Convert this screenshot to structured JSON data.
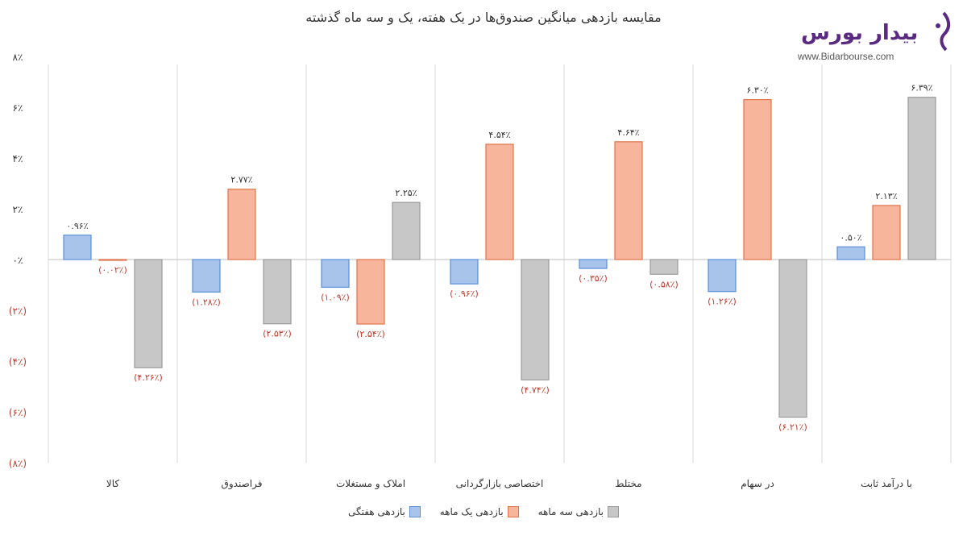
{
  "title": "مقایسه بازدهی میانگین صندوق‌ها در یک هفته، یک و سه ماه گذشته",
  "logo": {
    "name": "بیدار بورس",
    "url": "www.Bidarbourse.com"
  },
  "colors": {
    "weekly_fill": "#a9c4eb",
    "weekly_stroke": "#5b8ed6",
    "monthly_fill": "#f7b59b",
    "monthly_stroke": "#e0734a",
    "three_month_fill": "#c7c7c7",
    "three_month_stroke": "#9a9a9a",
    "positive_label": "#333333",
    "negative_label": "#c0392b"
  },
  "chart_data": {
    "type": "bar",
    "ylim": [
      -8,
      8
    ],
    "yticks": [
      {
        "value": 8,
        "label": "۸٪"
      },
      {
        "value": 6,
        "label": "۶٪"
      },
      {
        "value": 4,
        "label": "۴٪"
      },
      {
        "value": 2,
        "label": "۲٪"
      },
      {
        "value": 0,
        "label": "۰٪"
      },
      {
        "value": -2,
        "label": "(۲٪)"
      },
      {
        "value": -4,
        "label": "(۴٪)"
      },
      {
        "value": -6,
        "label": "(۶٪)"
      },
      {
        "value": -8,
        "label": "(۸٪)"
      }
    ],
    "categories": [
      "کالا",
      "فراصندوق",
      "املاک و مستغلات",
      "اختصاصی بازارگردانی",
      "مختلط",
      "در سهام",
      "با درآمد ثابت"
    ],
    "series": [
      {
        "name": "بازدهی هفتگی",
        "values": [
          0.96,
          -1.28,
          -1.09,
          -0.96,
          -0.35,
          -1.26,
          0.5
        ],
        "labels": [
          "۰.۹۶٪",
          "(۱.۲۸٪)",
          "(۱.۰۹٪)",
          "(۰.۹۶٪)",
          "(۰.۳۵٪)",
          "(۱.۲۶٪)",
          "۰.۵۰٪"
        ]
      },
      {
        "name": "بازدهی یک ماهه",
        "values": [
          -0.02,
          2.77,
          -2.54,
          4.54,
          4.64,
          6.3,
          2.13
        ],
        "labels": [
          "(۰.۰۲٪)",
          "۲.۷۷٪",
          "(۲.۵۴٪)",
          "۴.۵۴٪",
          "۴.۶۴٪",
          "۶.۳۰٪",
          "۲.۱۳٪"
        ]
      },
      {
        "name": "بازدهی سه ماهه",
        "values": [
          -4.26,
          -2.53,
          2.25,
          -4.74,
          -0.58,
          -6.21,
          6.39
        ],
        "labels": [
          "(۴.۲۶٪)",
          "(۲.۵۳٪)",
          "۲.۲۵٪",
          "(۴.۷۴٪)",
          "(۰.۵۸٪)",
          "(۶.۲۱٪)",
          "۶.۳۹٪"
        ]
      }
    ],
    "grid": false,
    "legend": "bottom"
  }
}
